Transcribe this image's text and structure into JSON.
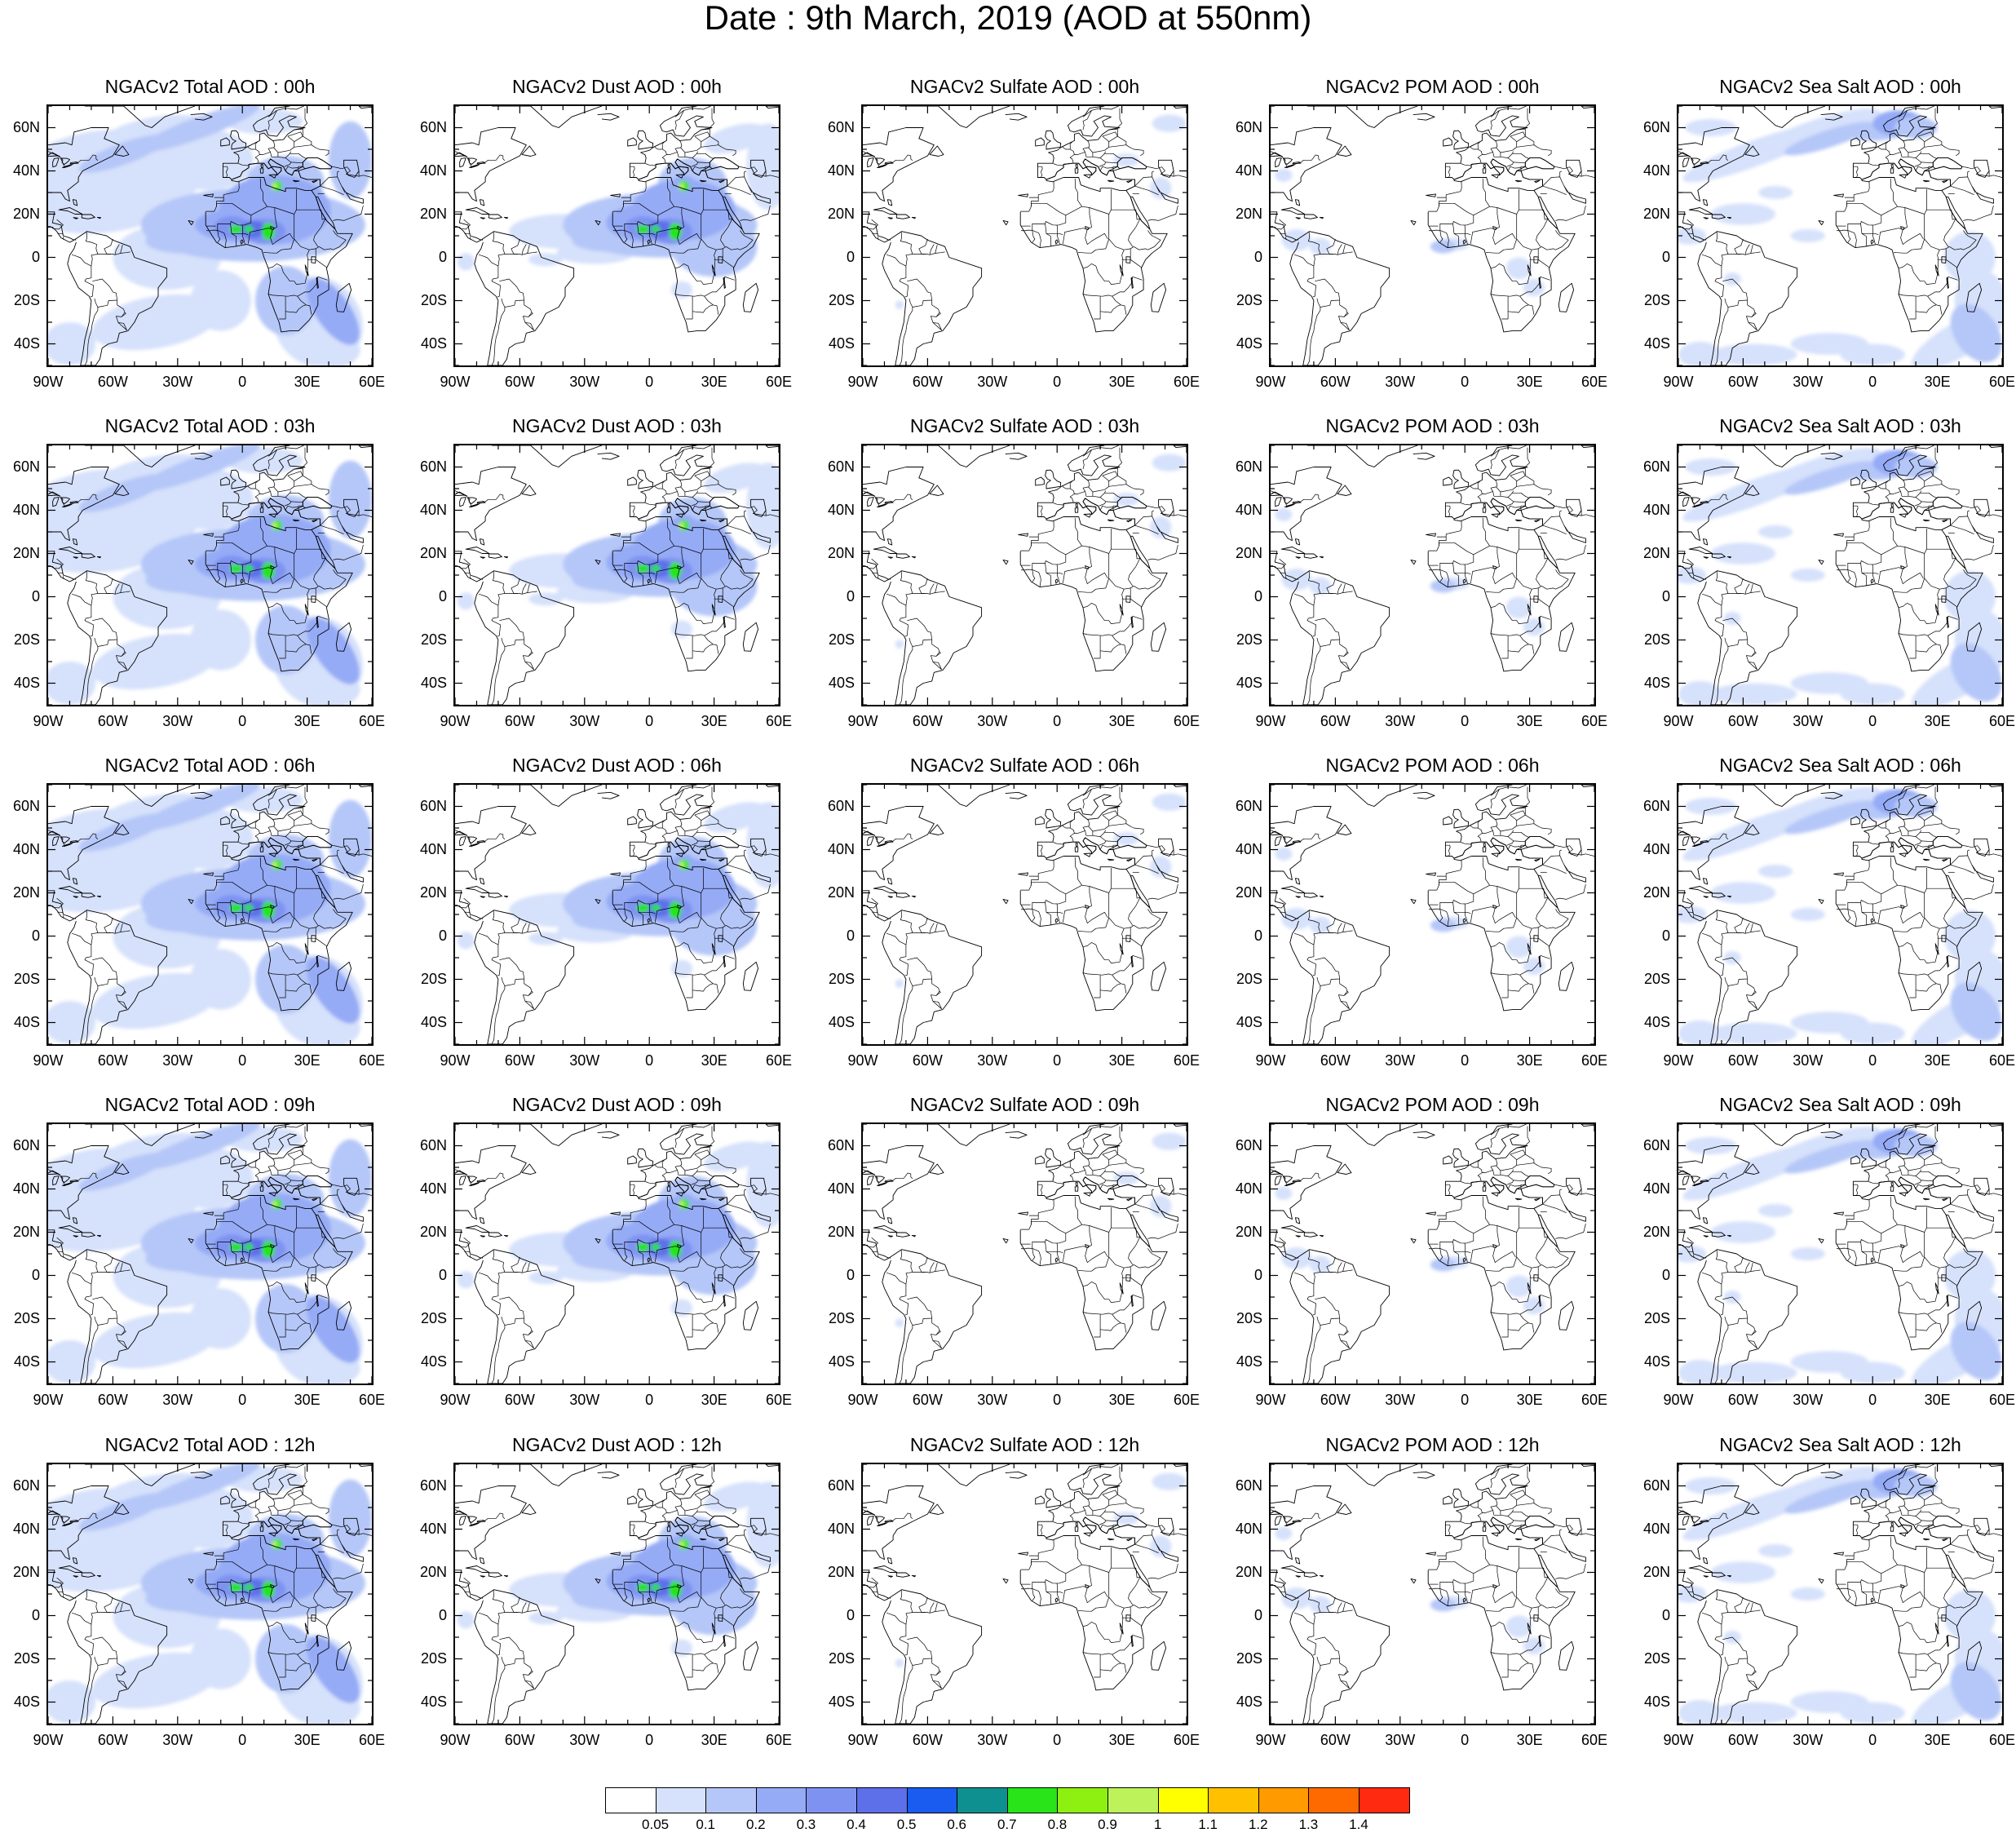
{
  "title": "Date : 9th March, 2019 (AOD at 550nm)",
  "panels": [
    [
      {
        "title": "NGACv2 Total AOD : 00h",
        "type": "total"
      },
      {
        "title": "NGACv2 Dust AOD : 00h",
        "type": "dust"
      },
      {
        "title": "NGACv2 Sulfate AOD : 00h",
        "type": "sulfate"
      },
      {
        "title": "NGACv2 POM AOD : 00h",
        "type": "pom"
      },
      {
        "title": "NGACv2 Sea Salt AOD : 00h",
        "type": "seasalt"
      }
    ],
    [
      {
        "title": "NGACv2 Total AOD : 03h",
        "type": "total"
      },
      {
        "title": "NGACv2 Dust AOD : 03h",
        "type": "dust"
      },
      {
        "title": "NGACv2 Sulfate AOD : 03h",
        "type": "sulfate"
      },
      {
        "title": "NGACv2 POM AOD : 03h",
        "type": "pom"
      },
      {
        "title": "NGACv2 Sea Salt AOD : 03h",
        "type": "seasalt"
      }
    ],
    [
      {
        "title": "NGACv2 Total AOD : 06h",
        "type": "total"
      },
      {
        "title": "NGACv2 Dust AOD : 06h",
        "type": "dust"
      },
      {
        "title": "NGACv2 Sulfate AOD : 06h",
        "type": "sulfate"
      },
      {
        "title": "NGACv2 POM AOD : 06h",
        "type": "pom"
      },
      {
        "title": "NGACv2 Sea Salt AOD : 06h",
        "type": "seasalt"
      }
    ],
    [
      {
        "title": "NGACv2 Total AOD : 09h",
        "type": "total"
      },
      {
        "title": "NGACv2 Dust AOD : 09h",
        "type": "dust"
      },
      {
        "title": "NGACv2 Sulfate AOD : 09h",
        "type": "sulfate"
      },
      {
        "title": "NGACv2 POM AOD : 09h",
        "type": "pom"
      },
      {
        "title": "NGACv2 Sea Salt  AOD : 09h",
        "type": "seasalt"
      }
    ],
    [
      {
        "title": "NGACv2 Total AOD  : 12h",
        "type": "total"
      },
      {
        "title": "NGACv2 Dust AOD : 12h",
        "type": "dust"
      },
      {
        "title": "NGACv2 Sulfate AOD : 12h",
        "type": "sulfate"
      },
      {
        "title": "NGACv2 POM  AOD : 12h",
        "type": "pom"
      },
      {
        "title": "NGACv2 Sea Salt  AOD : 12h",
        "type": "seasalt"
      }
    ]
  ],
  "map_extent": {
    "lon": [
      -90,
      60
    ],
    "lat": [
      -50,
      70
    ]
  },
  "lon_ticks": [
    {
      "value": -90,
      "label": "90W"
    },
    {
      "value": -60,
      "label": "60W"
    },
    {
      "value": -30,
      "label": "30W"
    },
    {
      "value": 0,
      "label": "0"
    },
    {
      "value": 30,
      "label": "30E"
    },
    {
      "value": 60,
      "label": "60E"
    }
  ],
  "lat_ticks": [
    {
      "value": 60,
      "label": "60N"
    },
    {
      "value": 40,
      "label": "40N"
    },
    {
      "value": 20,
      "label": "20N"
    },
    {
      "value": 0,
      "label": "0"
    },
    {
      "value": -20,
      "label": "20S"
    },
    {
      "value": -40,
      "label": "40S"
    }
  ],
  "colorbar": {
    "labels": [
      "0.05",
      "0.1",
      "0.2",
      "0.3",
      "0.4",
      "0.5",
      "0.6",
      "0.7",
      "0.8",
      "0.9",
      "1",
      "1.1",
      "1.2",
      "1.3",
      "1.4"
    ],
    "colors": [
      "#ffffff",
      "#d6e1fb",
      "#b5c7f8",
      "#95abf6",
      "#7e93f1",
      "#5d6fe9",
      "#1a5cf0",
      "#0f9090",
      "#28e418",
      "#8ef010",
      "#bdf25a",
      "#ffff00",
      "#ffc000",
      "#ff9a00",
      "#ff6a00",
      "#ff2a10"
    ]
  },
  "aod_colors": {
    "light": "#d6e1fb",
    "mid": "#b5c7f8",
    "strong": "#95abf6",
    "deep": "#7e93f1",
    "peak": "#5d6fe9",
    "hot": "#28e418",
    "hot2": "#bdf25a"
  }
}
